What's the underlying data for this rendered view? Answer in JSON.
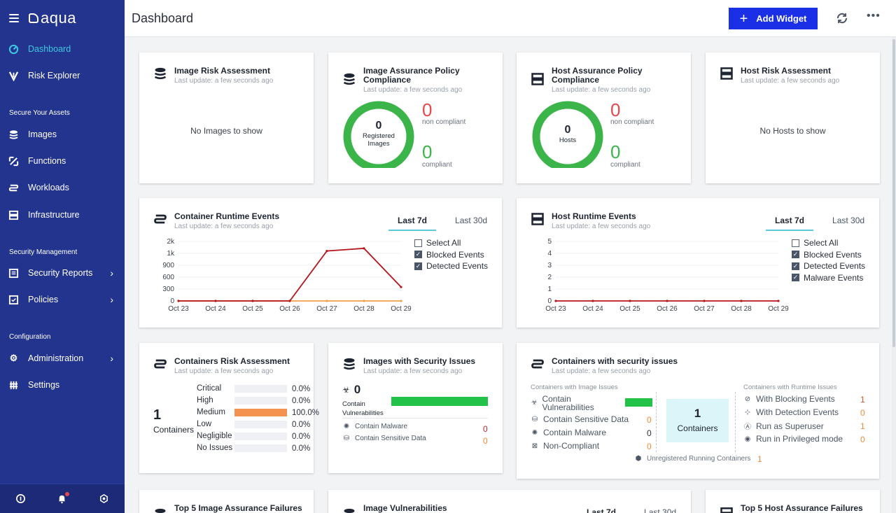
{
  "app": {
    "logo": "aqua"
  },
  "header": {
    "title": "Dashboard",
    "add_widget": "Add Widget"
  },
  "sidebar": {
    "items": [
      {
        "label": "Dashboard",
        "icon": "dashboard-icon"
      },
      {
        "label": "Risk Explorer",
        "icon": "risk-explorer-icon"
      },
      {
        "label": "Images",
        "icon": "layers-icon"
      },
      {
        "label": "Functions",
        "icon": "functions-icon"
      },
      {
        "label": "Workloads",
        "icon": "workloads-icon"
      },
      {
        "label": "Infrastructure",
        "icon": "server-icon"
      },
      {
        "label": "Security Reports",
        "icon": "report-icon"
      },
      {
        "label": "Policies",
        "icon": "policy-icon"
      },
      {
        "label": "Administration",
        "icon": "gear-icon"
      },
      {
        "label": "Settings",
        "icon": "sliders-icon"
      }
    ],
    "sections": [
      "Secure Your Assets",
      "Security Management",
      "Configuration"
    ],
    "active_color": "#3ec6e0"
  },
  "common": {
    "last_update": "Last update: a few seconds ago"
  },
  "widgets": {
    "image_risk": {
      "title": "Image Risk Assessment",
      "empty": "No Images to show"
    },
    "image_policy": {
      "title_line1": "Image Assurance Policy",
      "title_line2": "Compliance",
      "center_num": "0",
      "center_l1": "Registered",
      "center_l2": "Images",
      "non_compliant_num": "0",
      "non_compliant": "non compliant",
      "compliant_num": "0",
      "compliant": "compliant"
    },
    "host_policy": {
      "title_line1": "Host Assurance Policy",
      "title_line2": "Compliance",
      "center_num": "0",
      "center_l1": "Hosts",
      "non_compliant_num": "0",
      "non_compliant": "non compliant",
      "compliant_num": "0",
      "compliant": "compliant"
    },
    "host_risk": {
      "title": "Host Risk Assessment",
      "empty": "No Hosts to show"
    },
    "container_runtime": {
      "title": "Container Runtime Events",
      "tab_7d": "Last 7d",
      "tab_30d": "Last 30d",
      "legend": [
        "Select All",
        "Blocked Events",
        "Detected Events"
      ]
    },
    "host_runtime": {
      "title": "Host Runtime Events",
      "tab_7d": "Last 7d",
      "tab_30d": "Last 30d",
      "legend": [
        "Select All",
        "Blocked Events",
        "Detected Events",
        "Malware Events"
      ]
    },
    "containers_risk": {
      "title": "Containers Risk Assessment",
      "count": "1",
      "count_label": "Containers",
      "rows": [
        {
          "name": "Critical",
          "pct": "0.0%",
          "fill": 0
        },
        {
          "name": "High",
          "pct": "0.0%",
          "fill": 0
        },
        {
          "name": "Medium",
          "pct": "100.0%",
          "fill": 1
        },
        {
          "name": "Low",
          "pct": "0.0%",
          "fill": 0
        },
        {
          "name": "Negligible",
          "pct": "0.0%",
          "fill": 0
        },
        {
          "name": "No Issues",
          "pct": "0.0%",
          "fill": 0
        }
      ]
    },
    "images_security": {
      "title": "Images with Security Issues",
      "count": "0",
      "vuln_l1": "Contain",
      "vuln_l2": "Vulnerabilities",
      "malware": "Contain Malware",
      "malware_val": "0",
      "sensitive": "Contain Sensitive Data",
      "sensitive_val": "0"
    },
    "containers_security": {
      "title": "Containers with security issues",
      "image_header": "Containers with Image Issues",
      "runtime_header": "Containers with Runtime Issues",
      "image_rows": [
        {
          "label": "Contain Vulnerabilities",
          "val": ""
        },
        {
          "label": "Contain Sensitive Data",
          "val": "0"
        },
        {
          "label": "Contain Malware",
          "val": "0"
        },
        {
          "label": "Non-Compliant",
          "val": "0"
        }
      ],
      "runtime_rows": [
        {
          "label": "With Blocking Events",
          "val": "1"
        },
        {
          "label": "With Detection Events",
          "val": "0"
        },
        {
          "label": "Run as Superuser",
          "val": "1"
        },
        {
          "label": "Run in Privileged mode",
          "val": "0"
        }
      ],
      "center_num": "1",
      "center_label": "Containers",
      "unregistered": "Unregistered Running Containers",
      "unregistered_val": "1"
    },
    "bottom": {
      "top5_image": "Top 5 Image Assurance Failures",
      "image_vuln": "Image Vulnerabilities",
      "tab_7d": "Last 7d",
      "tab_30d": "Last 30d",
      "top5_host": "Top 5 Host Assurance Failures"
    }
  },
  "chart_data": [
    {
      "type": "line",
      "title": "Container Runtime Events",
      "x": [
        "Oct 23",
        "Oct 24",
        "Oct 25",
        "Oct 26",
        "Oct 27",
        "Oct 28",
        "Oct 29"
      ],
      "y_ticks": [
        "2k",
        "1k",
        "900",
        "600",
        "300",
        "0"
      ],
      "series": [
        {
          "name": "Blocked Events",
          "color": "#b5151b",
          "values": [
            0,
            0,
            0,
            0,
            1200,
            1420,
            350
          ]
        },
        {
          "name": "Detected Events",
          "color": "#f0a04b",
          "values": [
            0,
            0,
            0,
            0,
            0,
            0,
            0
          ]
        }
      ]
    },
    {
      "type": "line",
      "title": "Host Runtime Events",
      "x": [
        "Oct 23",
        "Oct 24",
        "Oct 25",
        "Oct 26",
        "Oct 27",
        "Oct 28",
        "Oct 29"
      ],
      "y_ticks": [
        "5",
        "4",
        "3",
        "2",
        "1",
        "0"
      ],
      "ylim": [
        0,
        5
      ],
      "series": [
        {
          "name": "Blocked Events",
          "color": "#b5151b",
          "values": [
            0,
            0,
            0,
            0,
            0,
            0,
            0
          ]
        }
      ]
    }
  ]
}
